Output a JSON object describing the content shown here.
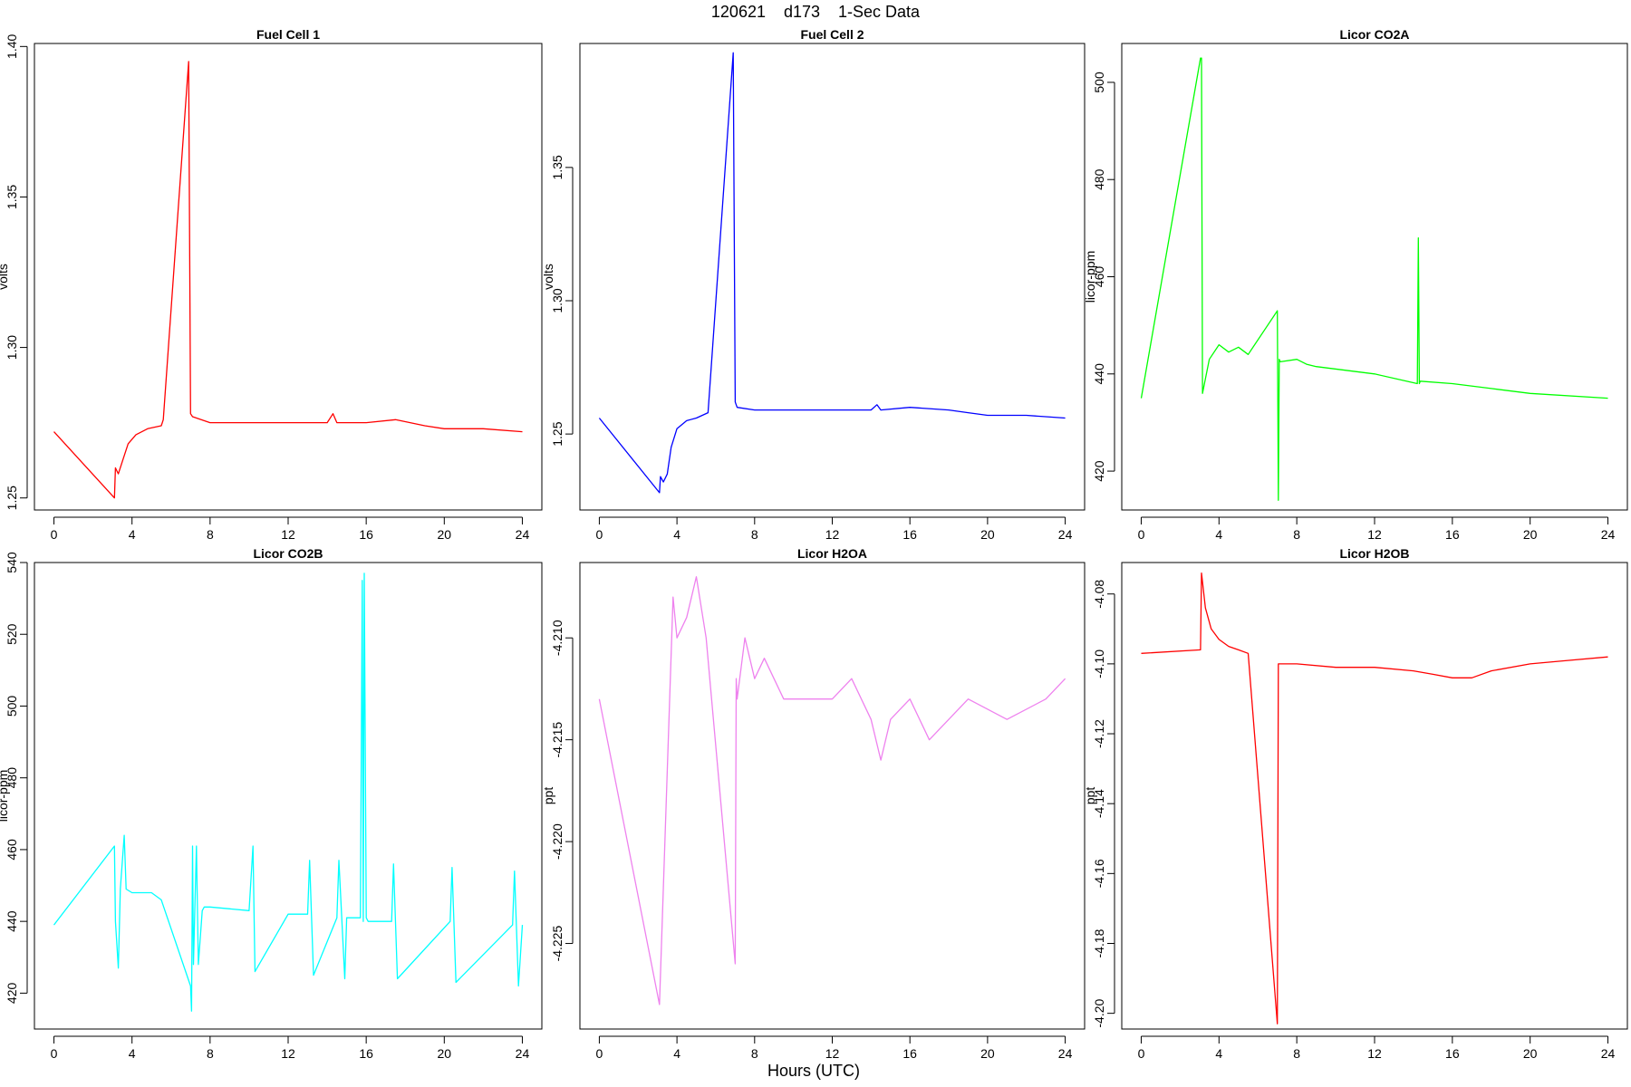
{
  "figure": {
    "suptitle": "120621    d173    1-Sec Data",
    "xlabel": "Hours (UTC)"
  },
  "chart_data": [
    {
      "type": "line",
      "title": "Fuel Cell 1",
      "xlabel": "",
      "ylabel": "volts",
      "color": "#ff0000",
      "xlim": [
        -1,
        25
      ],
      "ylim": [
        1.246,
        1.401
      ],
      "xticks": [
        0,
        4,
        8,
        12,
        16,
        20,
        24
      ],
      "yticks": [
        1.25,
        1.3,
        1.35,
        1.4
      ],
      "ytick_labels": [
        "1.25",
        "1.30",
        "1.35",
        "1.40"
      ],
      "x": [
        0,
        3.1,
        3.15,
        3.3,
        3.5,
        3.8,
        4.2,
        4.8,
        5.5,
        5.6,
        6.9,
        7.0,
        7.1,
        8,
        10,
        12,
        14,
        14.3,
        14.5,
        16,
        17.5,
        19,
        20,
        22,
        24
      ],
      "y": [
        1.272,
        1.25,
        1.26,
        1.258,
        1.262,
        1.268,
        1.271,
        1.273,
        1.274,
        1.276,
        1.395,
        1.278,
        1.277,
        1.275,
        1.275,
        1.275,
        1.275,
        1.278,
        1.275,
        1.275,
        1.276,
        1.274,
        1.273,
        1.273,
        1.272
      ]
    },
    {
      "type": "line",
      "title": "Fuel Cell 2",
      "xlabel": "",
      "ylabel": "volts",
      "color": "#0000ff",
      "xlim": [
        -1,
        25
      ],
      "ylim": [
        1.2215,
        1.3965
      ],
      "xticks": [
        0,
        4,
        8,
        12,
        16,
        20,
        24
      ],
      "yticks": [
        1.25,
        1.3,
        1.35
      ],
      "ytick_labels": [
        "1.25",
        "1.30",
        "1.35"
      ],
      "x": [
        0,
        3.1,
        3.15,
        3.3,
        3.5,
        3.7,
        4.0,
        4.5,
        5.0,
        5.6,
        6.9,
        7.0,
        7.1,
        8,
        10,
        12,
        14,
        14.3,
        14.5,
        16,
        18,
        19,
        20,
        22,
        24
      ],
      "y": [
        1.256,
        1.228,
        1.234,
        1.232,
        1.235,
        1.245,
        1.252,
        1.255,
        1.256,
        1.258,
        1.393,
        1.262,
        1.26,
        1.259,
        1.259,
        1.259,
        1.259,
        1.261,
        1.259,
        1.26,
        1.259,
        1.258,
        1.257,
        1.257,
        1.256
      ]
    },
    {
      "type": "line",
      "title": "Licor CO2A",
      "xlabel": "",
      "ylabel": "licor-ppm",
      "color": "#00ff00",
      "xlim": [
        -1,
        25
      ],
      "ylim": [
        412,
        508
      ],
      "xticks": [
        0,
        4,
        8,
        12,
        16,
        20,
        24
      ],
      "yticks": [
        420,
        440,
        460,
        480,
        500
      ],
      "ytick_labels": [
        "420",
        "440",
        "460",
        "480",
        "500"
      ],
      "x": [
        0,
        3.05,
        3.1,
        3.15,
        3.5,
        4.0,
        4.5,
        5.0,
        5.5,
        7.0,
        7.05,
        7.1,
        7.15,
        8,
        8.5,
        9,
        12,
        14.2,
        14.25,
        14.3,
        14.35,
        16,
        18,
        20,
        24
      ],
      "y": [
        435,
        505,
        505,
        436,
        443,
        446,
        444.5,
        445.5,
        444,
        453,
        414,
        443,
        442.5,
        443,
        442,
        441.5,
        440,
        438,
        468,
        438,
        438.5,
        438,
        437,
        436,
        435
      ]
    },
    {
      "type": "line",
      "title": "Licor CO2B",
      "xlabel": "",
      "ylabel": "licor-ppm",
      "color": "#00ffff",
      "xlim": [
        -1,
        25
      ],
      "ylim": [
        410,
        540
      ],
      "xticks": [
        0,
        4,
        8,
        12,
        16,
        20,
        24
      ],
      "yticks": [
        420,
        440,
        460,
        480,
        500,
        520,
        540
      ],
      "ytick_labels": [
        "420",
        "440",
        "460",
        "480",
        "500",
        "520",
        "540"
      ],
      "x": [
        0,
        3.1,
        3.15,
        3.3,
        3.4,
        3.6,
        3.7,
        4.0,
        5.0,
        5.5,
        7.0,
        7.05,
        7.1,
        7.15,
        7.3,
        7.4,
        7.6,
        7.7,
        8,
        10,
        10.2,
        10.3,
        12,
        13.0,
        13.1,
        13.3,
        14.5,
        14.6,
        14.9,
        15.0,
        15.7,
        15.8,
        15.85,
        15.9,
        16.0,
        16.1,
        17.3,
        17.4,
        17.6,
        20.3,
        20.4,
        20.6,
        23.5,
        23.6,
        23.8,
        24
      ],
      "y": [
        439,
        461,
        440,
        427,
        449,
        464,
        449,
        448,
        448,
        446,
        422,
        415,
        461,
        428,
        461,
        428,
        443,
        444,
        444,
        443,
        461,
        426,
        442,
        442,
        457,
        425,
        441,
        457,
        424,
        441,
        441,
        535,
        440,
        537,
        441,
        440,
        440,
        456,
        424,
        440,
        455,
        423,
        439,
        454,
        422,
        439
      ]
    },
    {
      "type": "line",
      "title": "Licor H2OA",
      "xlabel": "",
      "ylabel": "ppt",
      "color": "#ee82ee",
      "xlim": [
        -1,
        25
      ],
      "ylim": [
        -4.2292,
        -4.2063
      ],
      "xticks": [
        0,
        4,
        8,
        12,
        16,
        20,
        24
      ],
      "yticks": [
        -4.225,
        -4.22,
        -4.215,
        -4.21
      ],
      "ytick_labels": [
        "-4.225",
        "-4.220",
        "-4.215",
        "-4.210"
      ],
      "x": [
        0,
        3.1,
        3.8,
        4.0,
        4.5,
        5.0,
        5.5,
        7.0,
        7.05,
        7.1,
        7.5,
        8.0,
        8.5,
        9.0,
        9.5,
        10,
        12,
        13,
        14,
        14.5,
        15,
        16,
        17,
        19,
        21,
        23,
        24
      ],
      "y": [
        -4.213,
        -4.228,
        -4.208,
        -4.21,
        -4.209,
        -4.207,
        -4.21,
        -4.226,
        -4.212,
        -4.213,
        -4.21,
        -4.212,
        -4.211,
        -4.212,
        -4.213,
        -4.213,
        -4.213,
        -4.212,
        -4.214,
        -4.216,
        -4.214,
        -4.213,
        -4.215,
        -4.213,
        -4.214,
        -4.213,
        -4.212
      ]
    },
    {
      "type": "line",
      "title": "Licor H2OB",
      "xlabel": "",
      "ylabel": "ppt",
      "color": "#ff0000",
      "xlim": [
        -1,
        25
      ],
      "ylim": [
        -4.2045,
        -4.071
      ],
      "xticks": [
        0,
        4,
        8,
        12,
        16,
        20,
        24
      ],
      "yticks": [
        -4.2,
        -4.18,
        -4.16,
        -4.14,
        -4.12,
        -4.1,
        -4.08
      ],
      "ytick_labels": [
        "-4.20",
        "-4.18",
        "-4.16",
        "-4.14",
        "-4.12",
        "-4.10",
        "-4.08"
      ],
      "x": [
        0,
        3.05,
        3.1,
        3.3,
        3.6,
        4.0,
        4.5,
        5.0,
        5.5,
        7.0,
        7.05,
        7.1,
        8,
        10,
        12,
        14,
        15,
        16,
        17,
        18,
        20,
        22,
        24
      ],
      "y": [
        -4.097,
        -4.096,
        -4.074,
        -4.084,
        -4.09,
        -4.093,
        -4.095,
        -4.096,
        -4.097,
        -4.203,
        -4.1,
        -4.1,
        -4.1,
        -4.101,
        -4.101,
        -4.102,
        -4.103,
        -4.104,
        -4.104,
        -4.102,
        -4.1,
        -4.099,
        -4.098
      ]
    }
  ]
}
